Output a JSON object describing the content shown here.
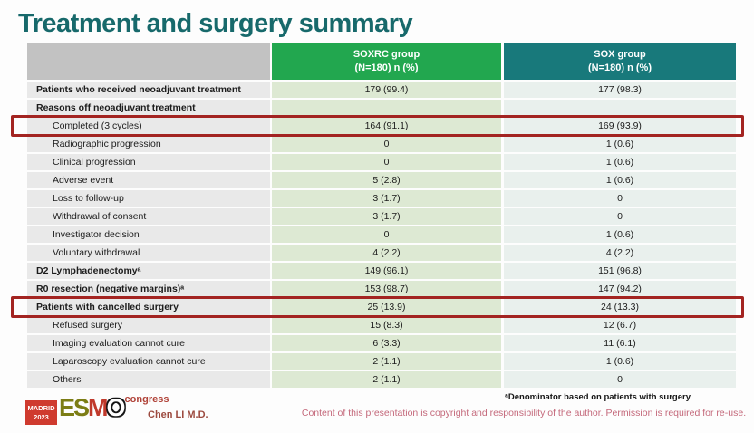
{
  "slide": {
    "title": "Treatment and surgery summary"
  },
  "table": {
    "columns": {
      "soxrc": {
        "line1": "SOXRC group",
        "line2": "(N=180)  n (%)"
      },
      "sox": {
        "line1": "SOX group",
        "line2": "(N=180)  n (%)"
      }
    },
    "rows": [
      {
        "label": "Patients who received neoadjuvant treatment",
        "soxrc": "179 (99.4)",
        "sox": "177 (98.3)",
        "bold": true,
        "indent": false,
        "highlighted": false
      },
      {
        "label": "Reasons off neoadjuvant treatment",
        "soxrc": "",
        "sox": "",
        "bold": true,
        "indent": false,
        "highlighted": false
      },
      {
        "label": "Completed (3 cycles)",
        "soxrc": "164 (91.1)",
        "sox": "169 (93.9)",
        "bold": false,
        "indent": true,
        "highlighted": true
      },
      {
        "label": "Radiographic progression",
        "soxrc": "0",
        "sox": "1 (0.6)",
        "bold": false,
        "indent": true,
        "highlighted": false
      },
      {
        "label": "Clinical progression",
        "soxrc": "0",
        "sox": "1 (0.6)",
        "bold": false,
        "indent": true,
        "highlighted": false
      },
      {
        "label": "Adverse event",
        "soxrc": "5 (2.8)",
        "sox": "1 (0.6)",
        "bold": false,
        "indent": true,
        "highlighted": false
      },
      {
        "label": "Loss to follow-up",
        "soxrc": "3 (1.7)",
        "sox": "0",
        "bold": false,
        "indent": true,
        "highlighted": false
      },
      {
        "label": "Withdrawal of consent",
        "soxrc": "3 (1.7)",
        "sox": "0",
        "bold": false,
        "indent": true,
        "highlighted": false
      },
      {
        "label": "Investigator decision",
        "soxrc": "0",
        "sox": "1 (0.6)",
        "bold": false,
        "indent": true,
        "highlighted": false
      },
      {
        "label": "Voluntary withdrawal",
        "soxrc": "4 (2.2)",
        "sox": "4 (2.2)",
        "bold": false,
        "indent": true,
        "highlighted": false
      },
      {
        "label": "D2 Lymphadenectomyᵃ",
        "soxrc": "149 (96.1)",
        "sox": "151 (96.8)",
        "bold": true,
        "indent": false,
        "highlighted": false
      },
      {
        "label": "R0 resection (negative margins)ᵃ",
        "soxrc": "153 (98.7)",
        "sox": "147 (94.2)",
        "bold": true,
        "indent": false,
        "highlighted": false
      },
      {
        "label": "Patients with cancelled surgery",
        "soxrc": "25 (13.9)",
        "sox": "24 (13.3)",
        "bold": true,
        "indent": false,
        "highlighted": true
      },
      {
        "label": "Refused surgery",
        "soxrc": "15 (8.3)",
        "sox": "12 (6.7)",
        "bold": false,
        "indent": true,
        "highlighted": false
      },
      {
        "label": "Imaging evaluation cannot cure",
        "soxrc": "6 (3.3)",
        "sox": "11 (6.1)",
        "bold": false,
        "indent": true,
        "highlighted": false
      },
      {
        "label": "Laparoscopy evaluation cannot cure",
        "soxrc": "2 (1.1)",
        "sox": "1 (0.6)",
        "bold": false,
        "indent": true,
        "highlighted": false
      },
      {
        "label": "Others",
        "soxrc": "2 (1.1)",
        "sox": "0",
        "bold": false,
        "indent": true,
        "highlighted": false
      }
    ]
  },
  "footer": {
    "logo": {
      "badge_line1": "MADRID",
      "badge_line2": "2023",
      "esmo_es": "ES",
      "esmo_m": "M",
      "esmo_o": "O",
      "congress": "congress"
    },
    "author": "Chen LI M.D.",
    "footnote": "ᵃDenominator based on patients with surgery",
    "copyright": "Content of this presentation is copyright and responsibility of the author. Permission is required for re-use."
  },
  "colors": {
    "title_teal": "#17696b",
    "header_green": "#22a74f",
    "header_teal": "#18797b",
    "label_column_gray": "#e9e9e9",
    "soxrc_column_green": "#dde9d3",
    "sox_column_blue": "#e9f0ed",
    "highlight_red": "#a32421"
  }
}
